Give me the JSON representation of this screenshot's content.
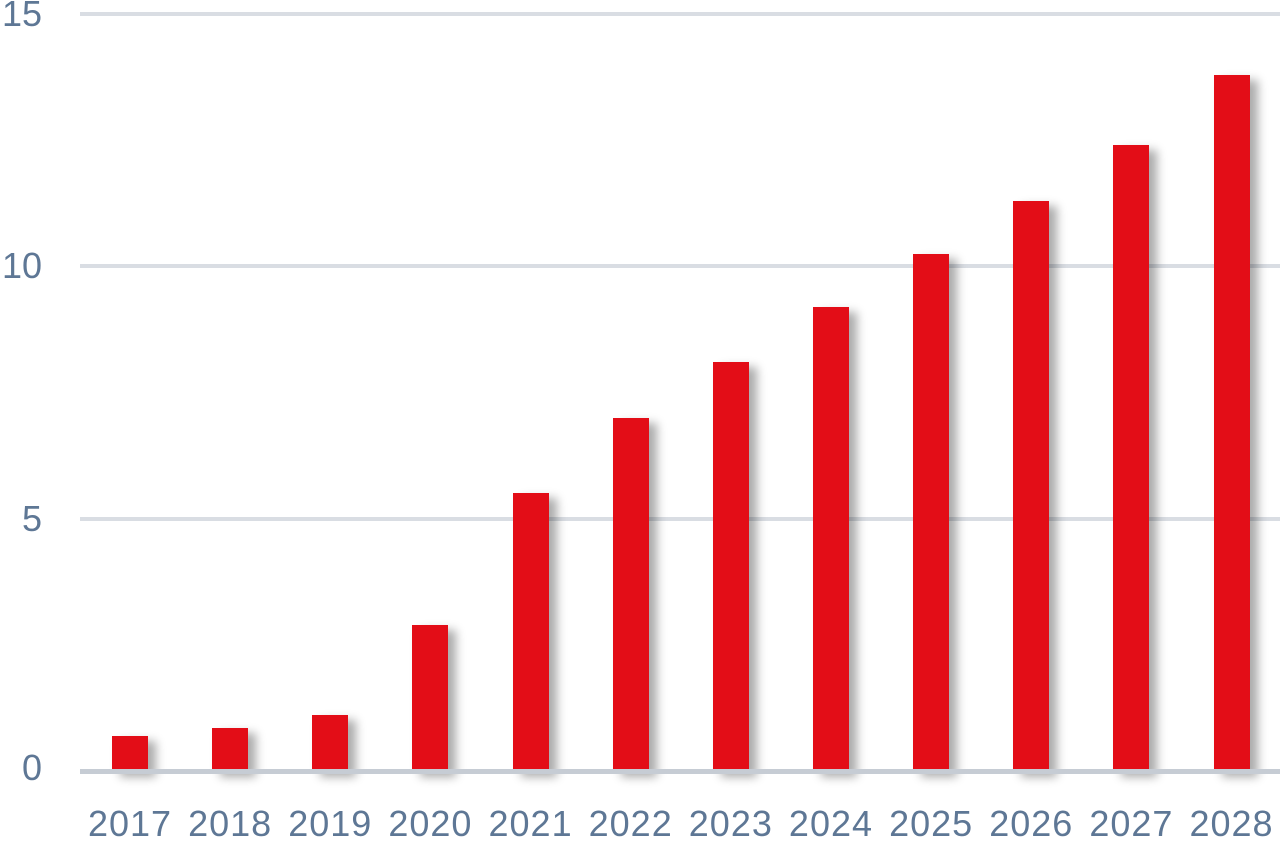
{
  "chart_data": {
    "type": "bar",
    "title": "",
    "xlabel": "",
    "ylabel": "",
    "categories": [
      "2017",
      "2018",
      "2019",
      "2020",
      "2021",
      "2022",
      "2023",
      "2024",
      "2025",
      "2026",
      "2027",
      "2028"
    ],
    "values": [
      0.7,
      0.85,
      1.1,
      2.9,
      5.5,
      7.0,
      8.1,
      9.2,
      10.25,
      11.3,
      12.4,
      13.8
    ],
    "ylim": [
      0,
      15
    ],
    "yticks": [
      0,
      5,
      10,
      15
    ],
    "grid": true,
    "legend": "none",
    "bar_color": "#e30d17"
  },
  "colors": {
    "bar": "#e30d17",
    "gridline": "#d9dde3",
    "baseline": "#c6ccd4",
    "tick_label": "#5e7795",
    "background": "#ffffff"
  }
}
